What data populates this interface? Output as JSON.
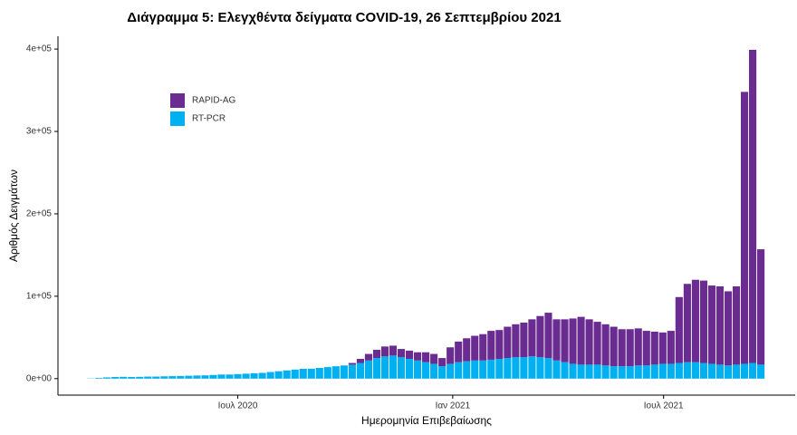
{
  "chart_data": {
    "type": "bar",
    "stacked": true,
    "title": "Διάγραμμα 5: Ελεγχθέντα δείγματα COVID-19, 26 Σεπτεμβρίου 2021",
    "x_label": "Ημερομηνία Επιβεβαίωσης",
    "y_label": "Αριθμός Δειγμάτων",
    "categories": [
      null,
      null,
      null,
      null,
      null,
      null,
      null,
      null,
      null,
      null,
      null,
      null,
      null,
      null,
      null,
      null,
      null,
      null,
      null,
      null,
      null,
      null,
      null,
      null,
      null,
      null,
      null,
      null,
      null,
      null,
      null,
      null,
      null,
      null,
      null,
      null,
      null,
      null,
      null,
      null,
      null,
      null,
      null,
      null,
      null,
      null,
      null,
      null,
      null,
      null,
      null,
      null,
      null,
      null,
      null,
      null,
      null,
      null,
      null,
      null,
      null,
      null,
      null,
      null,
      null,
      null,
      null,
      null,
      null,
      null,
      null,
      null,
      null,
      null,
      null,
      null,
      null,
      null,
      null,
      null,
      null,
      null,
      null
    ],
    "series": [
      {
        "name": "RT-PCR",
        "color": "#00b0f0",
        "values": [
          300,
          800,
          1500,
          2000,
          2200,
          2000,
          2200,
          2500,
          2500,
          2800,
          3000,
          3200,
          3500,
          3800,
          4000,
          4500,
          5000,
          5000,
          5500,
          6000,
          6500,
          7000,
          8000,
          9000,
          10000,
          11000,
          12000,
          12000,
          13000,
          14000,
          15000,
          16000,
          17000,
          19000,
          22000,
          25000,
          27000,
          28000,
          26000,
          24000,
          22000,
          20000,
          18000,
          15000,
          18000,
          20000,
          21000,
          22000,
          22000,
          23000,
          24000,
          25000,
          26000,
          26000,
          27000,
          26000,
          25000,
          22000,
          20000,
          18000,
          17000,
          17000,
          17000,
          16000,
          15000,
          15000,
          15000,
          16000,
          16000,
          17000,
          18000,
          18000,
          19000,
          20000,
          20000,
          19000,
          18000,
          17000,
          16000,
          17000,
          18000,
          19000,
          17000
        ]
      },
      {
        "name": "RAPID-AG",
        "color": "#6a2c91",
        "values": [
          0,
          0,
          0,
          0,
          0,
          0,
          0,
          0,
          0,
          0,
          0,
          0,
          0,
          0,
          0,
          0,
          0,
          0,
          0,
          0,
          0,
          0,
          0,
          0,
          0,
          0,
          0,
          0,
          0,
          0,
          0,
          0,
          2000,
          5000,
          8000,
          10000,
          12000,
          12000,
          10000,
          10000,
          10000,
          12000,
          12000,
          10000,
          20000,
          25000,
          28000,
          30000,
          32000,
          35000,
          35000,
          38000,
          40000,
          42000,
          45000,
          50000,
          55000,
          50000,
          52000,
          55000,
          58000,
          55000,
          52000,
          50000,
          48000,
          45000,
          45000,
          45000,
          42000,
          40000,
          38000,
          40000,
          80000,
          95000,
          100000,
          100000,
          95000,
          95000,
          90000,
          95000,
          330000,
          380000,
          140000
        ]
      }
    ],
    "xlim": [
      -4,
      86.2
    ],
    "xticks": [
      {
        "value": 18,
        "label": "Ιουλ 2020"
      },
      {
        "value": 44.3,
        "label": "Ιαν 2021"
      },
      {
        "value": 70.1,
        "label": "Ιουλ 2021"
      }
    ],
    "ylim": [
      -20000,
      410000
    ],
    "yticks": [
      {
        "value": 0,
        "label": "0e+00"
      },
      {
        "value": 100000,
        "label": "1e+05"
      },
      {
        "value": 200000,
        "label": "2e+05"
      },
      {
        "value": 300000,
        "label": "3e+05"
      },
      {
        "value": 400000,
        "label": "4e+05"
      }
    ],
    "legend": "top-left",
    "grid": false
  }
}
